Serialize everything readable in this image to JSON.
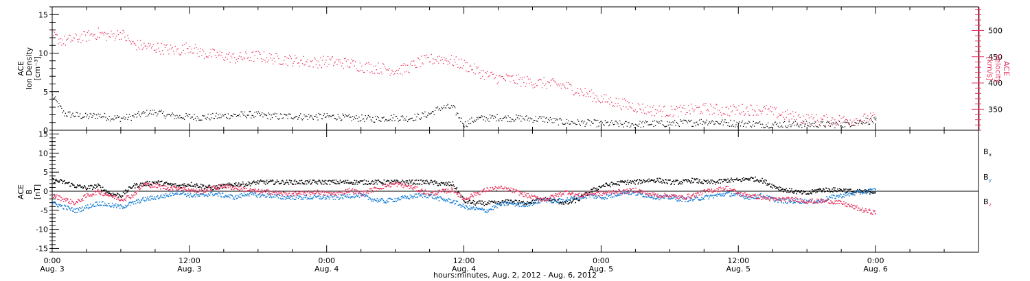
{
  "chart_data": [
    {
      "type": "scatter",
      "panel": "top",
      "ylabel_left": [
        "ACE",
        "Ion Density",
        "[cm⁻³]"
      ],
      "ylabel_right": [
        "ACE",
        "Velocity",
        "[km/s]"
      ],
      "ylim_left": [
        0,
        16
      ],
      "ylim_right": [
        310,
        545
      ],
      "yticks_left": [
        "0",
        "5",
        "10",
        "15"
      ],
      "yticks_left_values": [
        0,
        5,
        10,
        15
      ],
      "yticks_right": [
        "350",
        "400",
        "450",
        "500"
      ],
      "yticks_right_values": [
        350,
        400,
        450,
        500
      ],
      "series": [
        {
          "axis": "left",
          "color": "#000000",
          "x_hours": [
            0,
            1,
            2,
            3,
            4,
            5,
            6,
            7,
            8,
            9,
            10,
            11,
            12,
            13,
            14,
            15,
            16,
            17,
            18,
            19,
            20,
            21,
            22,
            23,
            24,
            25,
            26,
            27,
            28,
            29,
            30,
            31,
            32,
            33,
            34,
            35,
            36,
            37,
            38,
            39,
            40,
            41,
            42,
            43,
            44,
            45,
            46,
            47,
            48,
            49,
            50,
            51,
            52,
            53,
            54,
            55,
            56,
            57,
            58,
            59,
            60,
            61,
            62,
            63,
            64,
            65,
            66,
            67,
            68,
            69,
            70,
            71,
            72
          ],
          "values": [
            4.5,
            2.2,
            2.0,
            1.8,
            2.0,
            1.7,
            1.6,
            1.8,
            2.2,
            2.4,
            2.0,
            1.8,
            1.8,
            1.7,
            1.8,
            1.9,
            2.0,
            2.1,
            2.0,
            1.9,
            1.8,
            1.9,
            1.8,
            1.8,
            1.8,
            1.8,
            1.6,
            1.6,
            1.5,
            1.6,
            1.7,
            1.6,
            1.8,
            2.2,
            3.0,
            3.0,
            0.8,
            1.5,
            1.6,
            1.7,
            1.6,
            1.6,
            1.5,
            1.5,
            1.2,
            1.1,
            1.0,
            1.0,
            0.9,
            0.9,
            0.8,
            0.8,
            0.9,
            0.9,
            0.9,
            1.0,
            1.0,
            1.2,
            1.1,
            1.0,
            0.9,
            0.9,
            0.8,
            0.8,
            0.8,
            0.8,
            0.8,
            0.8,
            0.8,
            0.8,
            1.0,
            1.3,
            1.2
          ]
        },
        {
          "axis": "right",
          "color": "#e8335e",
          "x_hours": [
            0,
            1,
            2,
            3,
            4,
            5,
            6,
            7,
            8,
            9,
            10,
            11,
            12,
            13,
            14,
            15,
            16,
            17,
            18,
            19,
            20,
            21,
            22,
            23,
            24,
            25,
            26,
            27,
            28,
            29,
            30,
            31,
            32,
            33,
            34,
            35,
            36,
            37,
            38,
            39,
            40,
            41,
            42,
            43,
            44,
            45,
            46,
            47,
            48,
            49,
            50,
            51,
            52,
            53,
            54,
            55,
            56,
            57,
            58,
            59,
            60,
            61,
            62,
            63,
            64,
            65,
            66,
            67,
            68,
            69,
            70,
            71,
            72
          ],
          "values": [
            490,
            480,
            485,
            490,
            495,
            490,
            495,
            475,
            470,
            468,
            465,
            462,
            470,
            458,
            455,
            452,
            448,
            450,
            452,
            448,
            446,
            444,
            442,
            440,
            442,
            440,
            438,
            432,
            430,
            428,
            425,
            428,
            440,
            445,
            448,
            442,
            435,
            425,
            415,
            410,
            408,
            405,
            402,
            400,
            398,
            394,
            385,
            378,
            370,
            365,
            360,
            355,
            350,
            348,
            346,
            348,
            350,
            352,
            350,
            348,
            350,
            350,
            350,
            345,
            340,
            335,
            332,
            330,
            330,
            330,
            330,
            332,
            335
          ]
        }
      ]
    },
    {
      "type": "scatter",
      "panel": "bottom",
      "ylabel_left": [
        "ACE",
        "B",
        "[nT]"
      ],
      "ylim": [
        -16,
        16
      ],
      "yticks": [
        "-15",
        "-10",
        "-5",
        "0",
        "5",
        "10",
        "15"
      ],
      "ytick_values": [
        -15,
        -10,
        -5,
        0,
        5,
        10,
        15
      ],
      "series": [
        {
          "name": "Bx",
          "color": "#000000",
          "x_hours": [
            0,
            1,
            2,
            3,
            4,
            5,
            6,
            7,
            8,
            9,
            10,
            11,
            12,
            13,
            14,
            15,
            16,
            17,
            18,
            19,
            20,
            21,
            22,
            23,
            24,
            25,
            26,
            27,
            28,
            29,
            30,
            31,
            32,
            33,
            34,
            35,
            36,
            37,
            38,
            39,
            40,
            41,
            42,
            43,
            44,
            45,
            46,
            47,
            48,
            49,
            50,
            51,
            52,
            53,
            54,
            55,
            56,
            57,
            58,
            59,
            60,
            61,
            62,
            63,
            64,
            65,
            66,
            67,
            68,
            69,
            70,
            71,
            72
          ],
          "values": [
            3,
            2.5,
            1.5,
            1,
            1.5,
            -0.5,
            -1,
            1.5,
            2,
            2.5,
            2,
            1.5,
            2,
            1.5,
            1,
            1.5,
            2,
            2,
            2.5,
            2.5,
            2.5,
            2.5,
            2.5,
            2.5,
            2.5,
            2.5,
            2.5,
            2.5,
            2.5,
            2.5,
            2.5,
            2.5,
            2.5,
            2.5,
            2,
            2,
            -2.5,
            -3,
            -3,
            -3,
            -2.5,
            -3,
            -2.5,
            -2,
            -2.5,
            -3,
            -2,
            0,
            1.5,
            2,
            2.5,
            2.5,
            3,
            3,
            2.5,
            2.5,
            3,
            2.5,
            2.5,
            3,
            3,
            3.5,
            3,
            1.5,
            0.5,
            0,
            -0.5,
            0.5,
            0.5,
            0.5,
            0,
            0,
            0
          ]
        },
        {
          "name": "By",
          "color": "#1a7ed6",
          "x_hours": [
            0,
            1,
            2,
            3,
            4,
            5,
            6,
            7,
            8,
            9,
            10,
            11,
            12,
            13,
            14,
            15,
            16,
            17,
            18,
            19,
            20,
            21,
            22,
            23,
            24,
            25,
            26,
            27,
            28,
            29,
            30,
            31,
            32,
            33,
            34,
            35,
            36,
            37,
            38,
            39,
            40,
            41,
            42,
            43,
            44,
            45,
            46,
            47,
            48,
            49,
            50,
            51,
            52,
            53,
            54,
            55,
            56,
            57,
            58,
            59,
            60,
            61,
            62,
            63,
            64,
            65,
            66,
            67,
            68,
            69,
            70,
            71,
            72
          ],
          "values": [
            -3,
            -4,
            -5,
            -4,
            -3,
            -3.5,
            -4,
            -3,
            -2,
            -1.5,
            -1,
            0,
            -1,
            -1,
            -0.5,
            -1,
            -1.5,
            -0.5,
            -1,
            -1,
            -1.5,
            -1.5,
            -1.5,
            -1.5,
            -1.5,
            -1.5,
            -1,
            -1,
            -2,
            -2.5,
            -2,
            -1.5,
            -1,
            -1,
            -2,
            -2.5,
            -4,
            -4.5,
            -5,
            -3.5,
            -3,
            -3.5,
            -3,
            -2,
            -2.5,
            -2,
            -1.5,
            -1,
            -1.5,
            -1,
            0,
            -0.5,
            -1,
            -1.5,
            -1.5,
            -2,
            -2,
            -1.5,
            -1,
            -0.5,
            -1,
            -1.5,
            -1,
            -2,
            -2.5,
            -2.5,
            -2.5,
            -2.5,
            -1.5,
            -1,
            -0.5,
            0,
            0.5
          ]
        },
        {
          "name": "Bz",
          "color": "#e8335e",
          "x_hours": [
            0,
            1,
            2,
            3,
            4,
            5,
            6,
            7,
            8,
            9,
            10,
            11,
            12,
            13,
            14,
            15,
            16,
            17,
            18,
            19,
            20,
            21,
            22,
            23,
            24,
            25,
            26,
            27,
            28,
            29,
            30,
            31,
            32,
            33,
            34,
            35,
            36,
            37,
            38,
            39,
            40,
            41,
            42,
            43,
            44,
            45,
            46,
            47,
            48,
            49,
            50,
            51,
            52,
            53,
            54,
            55,
            56,
            57,
            58,
            59,
            60,
            61,
            62,
            63,
            64,
            65,
            66,
            67,
            68,
            69,
            70,
            71,
            72
          ],
          "values": [
            -1,
            -2,
            -3,
            -1,
            0,
            -1,
            -2,
            -1,
            2,
            1.5,
            1,
            1,
            0.5,
            0,
            1,
            1.5,
            1,
            0.5,
            0,
            0,
            -0.5,
            -0.5,
            -0.5,
            0,
            -0.5,
            -0.5,
            0.5,
            -0.5,
            0.5,
            1.5,
            2,
            1.5,
            0.5,
            -0.5,
            0,
            0.5,
            -2,
            -0.5,
            0.5,
            1,
            0.5,
            -0.5,
            -1.5,
            -2,
            -1,
            0,
            -1,
            -0.5,
            -0.5,
            0,
            0,
            0.5,
            -0.5,
            -1,
            -1,
            -1.5,
            -1,
            0,
            0.5,
            1,
            -0.5,
            -1,
            -1.5,
            -2,
            -2,
            -2,
            -2.5,
            -2.5,
            -2.5,
            -3,
            -4,
            -5,
            -5.5
          ]
        }
      ],
      "legend": [
        "B",
        "B",
        "B"
      ],
      "legend_subscripts": [
        "x",
        "y",
        "z"
      ],
      "legend_colors": [
        "#000000",
        "#1a7ed6",
        "#e8335e"
      ]
    }
  ],
  "x_axis": {
    "xlim_hours": [
      0,
      81
    ],
    "tick_hours": [
      0,
      12,
      24,
      36,
      48,
      60,
      72
    ],
    "tick_labels_time": [
      "0:00",
      "12:00",
      "0:00",
      "12:00",
      "0:00",
      "12:00",
      "0:00"
    ],
    "tick_labels_date": [
      "Aug. 3",
      "Aug. 3",
      "Aug. 4",
      "Aug. 4",
      "Aug. 5",
      "Aug. 5",
      "Aug. 6"
    ],
    "xlabel": "hours:minutes, Aug.  2, 2012 - Aug.  6, 2012"
  }
}
